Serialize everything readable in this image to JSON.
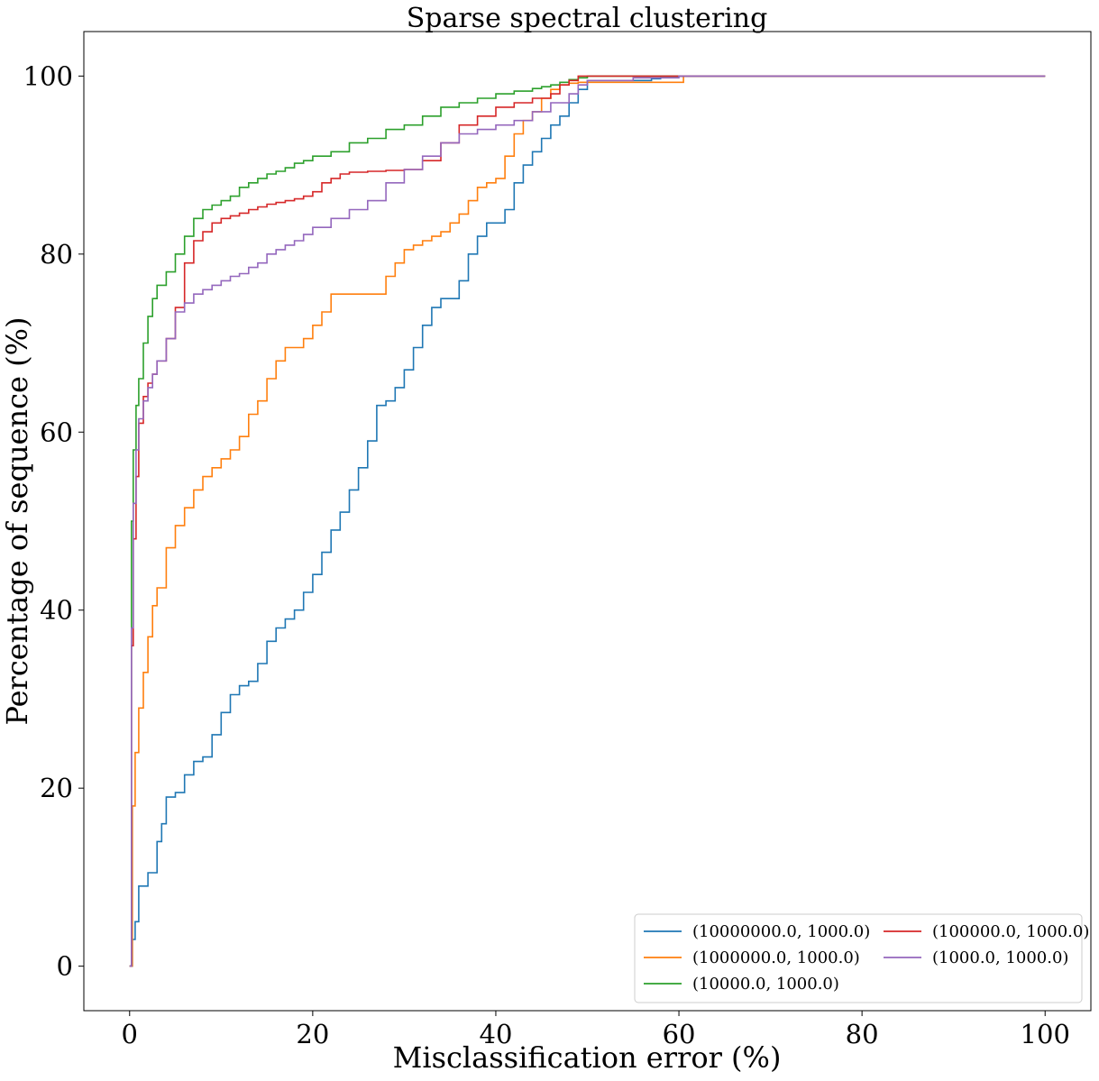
{
  "chart_data": {
    "type": "line",
    "title": "Sparse spectral clustering",
    "xlabel": "Misclassification error (%)",
    "ylabel": "Percentage of sequence (%)",
    "xlim": [
      -5,
      105
    ],
    "ylim": [
      -5,
      105
    ],
    "xticks": [
      0,
      20,
      40,
      60,
      80,
      100
    ],
    "yticks": [
      0,
      20,
      40,
      60,
      80,
      100
    ],
    "grid": false,
    "legend_position": "lower-right",
    "legend_columns": 2,
    "series": [
      {
        "name": "(10000000.0, 1000.0)",
        "color": "#1f77b4",
        "x": [
          0,
          0.3,
          0.6,
          1,
          1.5,
          2,
          3,
          3.5,
          4,
          5,
          6,
          7,
          8,
          9,
          10,
          11,
          12,
          13,
          14,
          15,
          16,
          17,
          18,
          19,
          20,
          21,
          22,
          23,
          24,
          25,
          26,
          27,
          28,
          29,
          30,
          31,
          32,
          33,
          34,
          35,
          36,
          37,
          38,
          39,
          40,
          41,
          42,
          43,
          44,
          45,
          46,
          47,
          48,
          49,
          50,
          55,
          57,
          58,
          60,
          100
        ],
        "y": [
          0,
          3,
          5,
          9,
          9,
          10.5,
          14,
          16,
          19,
          19.5,
          21.5,
          23,
          23.5,
          26,
          28.5,
          30.5,
          31.5,
          32,
          34,
          36.5,
          38,
          39,
          40,
          42,
          44,
          46.5,
          49,
          51,
          53.5,
          56,
          59,
          63,
          63.5,
          65,
          67,
          69.5,
          72,
          74,
          75,
          75,
          77,
          80,
          82,
          83.5,
          83.5,
          85,
          88,
          90,
          91.5,
          93,
          94.5,
          95.5,
          97,
          98.5,
          99.5,
          99.5,
          99.7,
          100,
          100,
          100
        ]
      },
      {
        "name": "(1000000.0, 1000.0)",
        "color": "#ff7f0e",
        "x": [
          0,
          0.3,
          0.6,
          1,
          1.5,
          2,
          2.5,
          3,
          4,
          5,
          6,
          7,
          8,
          9,
          10,
          11,
          12,
          13,
          14,
          15,
          16,
          17,
          18,
          19,
          20,
          21,
          22,
          23,
          25,
          27,
          28,
          29,
          30,
          31,
          32,
          33,
          34,
          35,
          36,
          37,
          38,
          39,
          40,
          41,
          42,
          43,
          44,
          45,
          46,
          47,
          48,
          49,
          50,
          55,
          60,
          60.5,
          100
        ],
        "y": [
          0,
          18,
          24,
          29,
          33,
          37,
          40.5,
          42.5,
          47,
          49.5,
          51.5,
          53.5,
          55,
          56,
          57,
          58,
          59.5,
          62,
          63.5,
          66,
          68,
          69.5,
          69.5,
          70.5,
          72,
          73.5,
          75.5,
          75.5,
          75.5,
          75.5,
          77.5,
          79,
          80.5,
          81,
          81.5,
          82,
          82.5,
          83.5,
          84.5,
          86,
          87.5,
          88,
          88.5,
          91,
          93.5,
          95,
          96,
          97.5,
          98.5,
          99,
          99.2,
          99.3,
          99.3,
          99.3,
          99.3,
          100,
          100
        ]
      },
      {
        "name": "(10000.0, 1000.0)",
        "color": "#2ca02c",
        "x": [
          0,
          0.2,
          0.4,
          0.7,
          1,
          1.5,
          2,
          2.5,
          3,
          4,
          5,
          6,
          7,
          8,
          9,
          10,
          11,
          12,
          13,
          14,
          15,
          16,
          17,
          18,
          19,
          20,
          22,
          24,
          26,
          28,
          30,
          32,
          34,
          36,
          38,
          40,
          42,
          44,
          45,
          46,
          47,
          48,
          49,
          50,
          52,
          55,
          60,
          100
        ],
        "y": [
          0,
          50,
          58,
          63,
          66,
          70,
          73,
          75,
          76.5,
          78,
          80,
          82,
          84,
          85,
          85.5,
          86,
          86.5,
          87.5,
          88,
          88.5,
          89,
          89.3,
          89.7,
          90.2,
          90.5,
          91,
          91.5,
          92.5,
          93,
          94,
          94.5,
          95.5,
          96.5,
          97,
          97.5,
          98,
          98.3,
          98.6,
          98.8,
          99,
          99.3,
          99.6,
          99.8,
          100,
          100,
          100,
          100,
          100
        ]
      },
      {
        "name": "(100000.0, 1000.0)",
        "color": "#d62728",
        "x": [
          0,
          0.2,
          0.4,
          0.7,
          1,
          1.5,
          2,
          2.5,
          3,
          4,
          5,
          6,
          7,
          8,
          9,
          10,
          11,
          12,
          13,
          14,
          15,
          16,
          17,
          18,
          19,
          20,
          21,
          22,
          23,
          24,
          26,
          28,
          30,
          32,
          34,
          36,
          38,
          40,
          42,
          44,
          46,
          47,
          48,
          49,
          50,
          55,
          60,
          100
        ],
        "y": [
          0,
          36,
          48,
          55,
          61,
          64,
          65.5,
          66.5,
          68,
          70.5,
          74,
          79,
          81.5,
          82.5,
          83.5,
          84,
          84.3,
          84.6,
          85,
          85.3,
          85.6,
          85.8,
          86,
          86.2,
          86.5,
          87,
          88,
          88.5,
          89,
          89.2,
          89.3,
          89.4,
          89.5,
          90.5,
          92.5,
          94.5,
          95.5,
          96.5,
          97,
          97.5,
          98,
          99,
          99.5,
          100,
          100,
          100,
          100,
          100
        ]
      },
      {
        "name": "(1000.0, 1000.0)",
        "color": "#9467bd",
        "x": [
          0,
          0.2,
          0.4,
          0.7,
          1,
          1.5,
          2,
          2.5,
          3,
          4,
          5,
          6,
          7,
          8,
          9,
          10,
          11,
          12,
          13,
          14,
          15,
          16,
          17,
          18,
          19,
          20,
          22,
          24,
          26,
          28,
          30,
          32,
          34,
          36,
          38,
          40,
          42,
          44,
          46,
          48,
          49,
          50,
          55,
          60,
          100
        ],
        "y": [
          0,
          38,
          52,
          58,
          61.5,
          63.5,
          65,
          66.5,
          68,
          70.5,
          73.5,
          74.5,
          75.5,
          76,
          76.5,
          77,
          77.5,
          77.8,
          78.5,
          79,
          80,
          80.5,
          81,
          81.5,
          82.2,
          83,
          84,
          85,
          86,
          88,
          89.5,
          91,
          92.5,
          93.5,
          94,
          94.5,
          95,
          96,
          97,
          98,
          99,
          99.5,
          99.8,
          100,
          100
        ]
      }
    ]
  }
}
